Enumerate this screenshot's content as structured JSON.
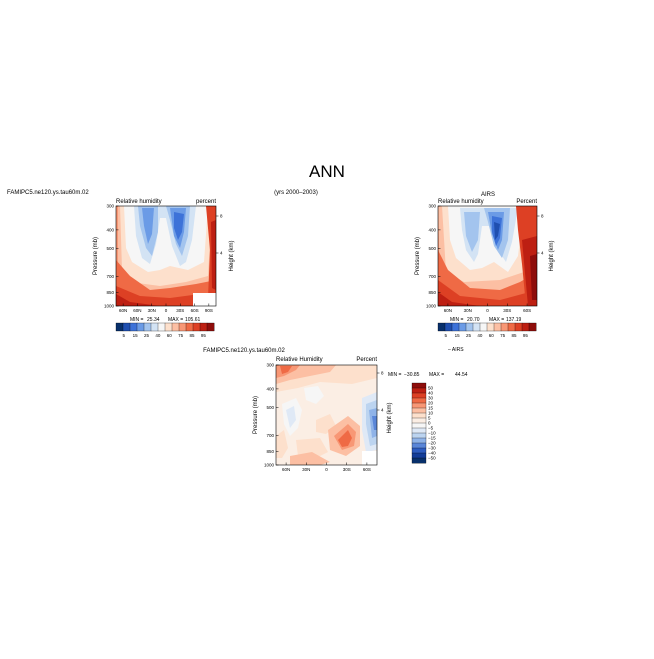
{
  "page": {
    "title": "ANN",
    "run_label": "FAMIPC5.ne120.ys.tau60m.02",
    "years": "(yrs 2000–2003)",
    "run_label_diff": "FAMIPC5.ne120.ys.tau60m.02"
  },
  "chart_data": [
    {
      "type": "heatmap",
      "title": "",
      "left_label": "Relative humidity",
      "right_label": "percent",
      "xlabel": "",
      "ylabel": "Pressure (mb)",
      "ylabel_right": "Height (km)",
      "x_ticks": [
        "60N",
        "60N",
        "30N",
        "0",
        "30S",
        "60S",
        "90S"
      ],
      "y_ticks": [
        "300",
        "400",
        "500",
        "700",
        "850",
        "1000"
      ],
      "y_ticks_right": [
        "8",
        "4"
      ],
      "min_label": "MIN =",
      "min_value": "25.34",
      "max_label": "MAX =",
      "max_value": "105.61",
      "colorbar_ticks": [
        "5",
        "15",
        "25",
        "40",
        "60",
        "75",
        "85",
        "95"
      ],
      "colorbar_colors": [
        "#08306b",
        "#1f4fb0",
        "#3d72d8",
        "#6b9be6",
        "#a3c4ee",
        "#d3e3f4",
        "#f6f6f6",
        "#fde0cc",
        "#fcbfa3",
        "#f89775",
        "#ef6a45",
        "#dd4024",
        "#bd1f12",
        "#8e0d0b"
      ]
    },
    {
      "type": "heatmap",
      "title": "AIRS",
      "left_label": "Relative humidity",
      "right_label": "Percent",
      "xlabel": "",
      "ylabel": "Pressure (mb)",
      "ylabel_right": "Height (km)",
      "x_ticks": [
        "60N",
        "30N",
        "0",
        "30S",
        "60S"
      ],
      "y_ticks": [
        "300",
        "400",
        "500",
        "700",
        "850",
        "1000"
      ],
      "y_ticks_right": [
        "8",
        "4"
      ],
      "min_label": "MIN =",
      "min_value": "20.70",
      "max_label": "MAX =",
      "max_value": "137.19",
      "colorbar_ticks": [
        "5",
        "15",
        "25",
        "40",
        "60",
        "75",
        "85",
        "95"
      ],
      "caption": "– AIRS",
      "colorbar_colors": [
        "#08306b",
        "#1f4fb0",
        "#3d72d8",
        "#6b9be6",
        "#a3c4ee",
        "#d3e3f4",
        "#f6f6f6",
        "#fde0cc",
        "#fcbfa3",
        "#f89775",
        "#ef6a45",
        "#dd4024",
        "#bd1f12",
        "#8e0d0b"
      ]
    },
    {
      "type": "heatmap",
      "title": "",
      "left_label": "Relative Humidity",
      "right_label": "Percent",
      "xlabel": "",
      "ylabel": "Pressure (mb)",
      "ylabel_right": "Height (km)",
      "x_ticks": [
        "60N",
        "30N",
        "0",
        "30S",
        "60S"
      ],
      "y_ticks": [
        "300",
        "400",
        "500",
        "700",
        "850",
        "1000"
      ],
      "y_ticks_right": [
        "8",
        "4"
      ],
      "min_label": "MIN =",
      "min_value": "−30.85",
      "max_label": "MAX =",
      "max_value": "44.54",
      "colorbar_ticks": [
        "50",
        "40",
        "30",
        "20",
        "15",
        "10",
        "5",
        "0",
        "−5",
        "−10",
        "−15",
        "−20",
        "−30",
        "−40",
        "−50"
      ],
      "colorbar_colors": [
        "#8e0d0b",
        "#bd1f12",
        "#dd4024",
        "#ef6a45",
        "#f89775",
        "#fcbfa3",
        "#fde0cc",
        "#fbeee4",
        "#f6f6f6",
        "#dfe9f6",
        "#bcd4f0",
        "#8fb3e8",
        "#5a86d8",
        "#2d5cc0",
        "#123c98",
        "#08306b"
      ]
    }
  ]
}
